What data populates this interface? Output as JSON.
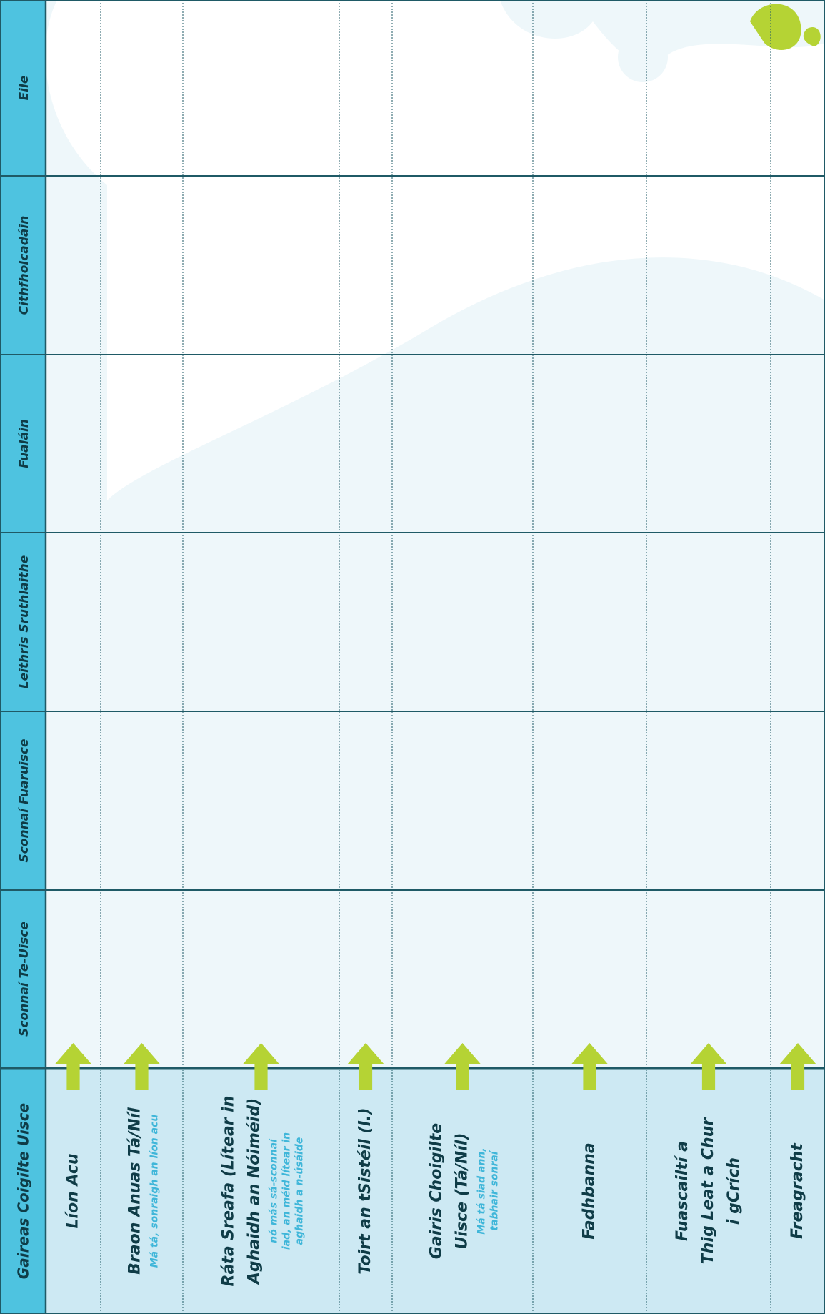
{
  "header": {
    "columns": [
      "Gaireas Coigilte Uisce",
      "Sconnaí Te-Uisce",
      "Sconnaí Fuaruisce",
      "Leithris Sruthlaithe",
      "Fualáin",
      "Cithfholcadáin",
      "Eile"
    ]
  },
  "rows": [
    {
      "label": [
        "Líon Acu"
      ]
    },
    {
      "label": [
        "Braon Anuas Tá/Níl"
      ],
      "note": [
        "Má tá, sonraigh an líon acu"
      ]
    },
    {
      "label": [
        "Ráta Sreafa (Lítear in",
        "Aghaidh an Nóiméid)"
      ],
      "note": [
        "nó más sá-sconnaí",
        "iad, an méid lítear in",
        "aghaidh a n-úsáide"
      ]
    },
    {
      "label": [
        "Toirt an tSistéil (l.)"
      ]
    },
    {
      "label": [
        "Gairis Choigilte",
        "Uisce  (Tá/Níl)"
      ],
      "note": [
        "Má tá siad ann,",
        "tabhair sonraí"
      ]
    },
    {
      "label": [
        "Fadhbanna"
      ]
    },
    {
      "label": [
        "Fuascailtí a",
        "Thig Leat a Chur",
        "i gCrích"
      ]
    },
    {
      "label": [
        "Freagracht"
      ]
    }
  ]
}
